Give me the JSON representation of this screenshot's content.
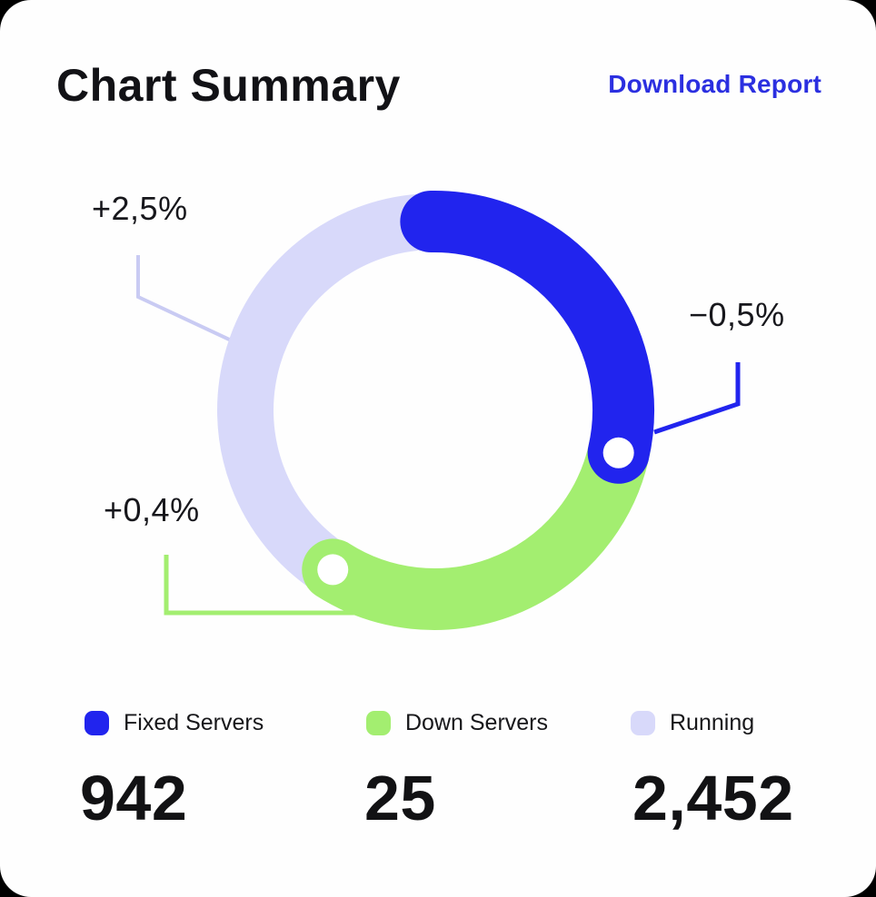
{
  "header": {
    "title": "Chart Summary",
    "download_button": "Download Report",
    "download_color": "#2b2fe0"
  },
  "chart_data": {
    "type": "pie",
    "variant": "donut",
    "title": "Chart Summary",
    "legend_position": "bottom",
    "segments": [
      {
        "label": "Fixed Servers",
        "value": "942",
        "delta": "−0,5%",
        "color": "#2124ee",
        "start_angle": -1,
        "end_angle": 103,
        "thickness": 68,
        "end_dot": true
      },
      {
        "label": "Down Servers",
        "value": "25",
        "delta": "+0,4%",
        "color": "#a3ee70",
        "start_angle": 100,
        "end_angle": 212.5,
        "thickness": 68,
        "end_dot": true
      },
      {
        "label": "Running",
        "value": "2,452",
        "delta": "+2,5%",
        "color": "#d8d9fa",
        "start_angle": 212.5,
        "end_angle": 361,
        "thickness": 62,
        "end_dot": false
      }
    ]
  },
  "annotations": [
    {
      "text": "+2,5%",
      "segment": "Running",
      "leader_color": "#c9cbf3"
    },
    {
      "text": "−0,5%",
      "segment": "Fixed Servers",
      "leader_color": "#2124ee"
    },
    {
      "text": "+0,4%",
      "segment": "Down Servers",
      "leader_color": "#a3ee70"
    }
  ]
}
